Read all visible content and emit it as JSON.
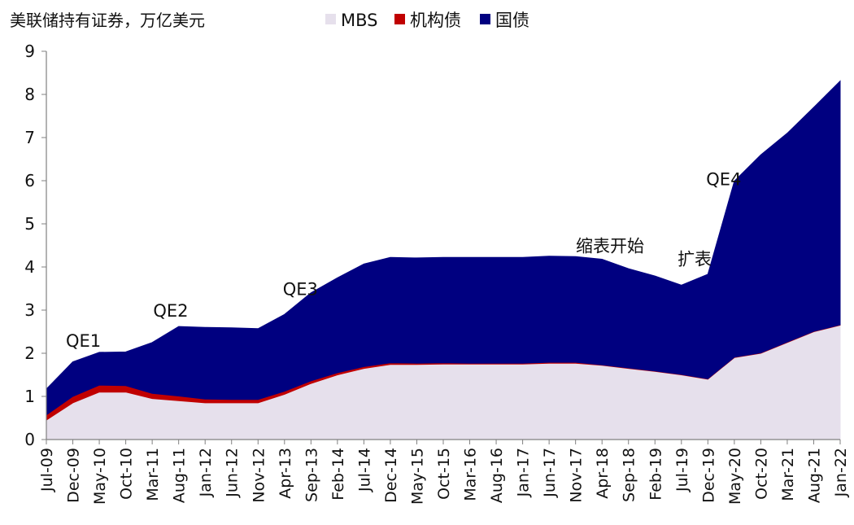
{
  "chart_data": {
    "type": "area",
    "stacked": true,
    "title": "美联储持有证券，万亿美元",
    "ylim": [
      0,
      9
    ],
    "yticks": [
      0,
      1,
      2,
      3,
      4,
      5,
      6,
      7,
      8,
      9
    ],
    "x_tick_labels": [
      "Jul-09",
      "Dec-09",
      "May-10",
      "Oct-10",
      "Mar-11",
      "Aug-11",
      "Jan-12",
      "Jun-12",
      "Nov-12",
      "Apr-13",
      "Sep-13",
      "Feb-14",
      "Jul-14",
      "Dec-14",
      "May-15",
      "Oct-15",
      "Mar-16",
      "Aug-16",
      "Jan-17",
      "Jun-17",
      "Nov-17",
      "Apr-18",
      "Sep-18",
      "Feb-19",
      "Jul-19",
      "Dec-19",
      "May-20",
      "Oct-20",
      "Mar-21",
      "Aug-21",
      "Jan-22"
    ],
    "legend": {
      "placement": "top"
    },
    "colors": {
      "MBS": "#e6e0ec",
      "机构债": "#c00000",
      "国债": "#000080"
    },
    "series": [
      {
        "name": "MBS",
        "values": [
          0.45,
          0.85,
          1.1,
          1.1,
          0.95,
          0.9,
          0.85,
          0.85,
          0.85,
          1.05,
          1.3,
          1.5,
          1.65,
          1.74,
          1.74,
          1.75,
          1.75,
          1.75,
          1.75,
          1.77,
          1.77,
          1.72,
          1.65,
          1.58,
          1.5,
          1.4,
          1.9,
          2.0,
          2.25,
          2.5,
          2.65
        ]
      },
      {
        "name": "机构债",
        "values": [
          0.12,
          0.15,
          0.16,
          0.15,
          0.12,
          0.11,
          0.09,
          0.08,
          0.08,
          0.07,
          0.06,
          0.05,
          0.04,
          0.04,
          0.03,
          0.03,
          0.02,
          0.02,
          0.02,
          0.02,
          0.02,
          0.01,
          0.01,
          0.01,
          0.01,
          0.01,
          0.01,
          0.01,
          0.01,
          0.01,
          0.01
        ]
      },
      {
        "name": "国债",
        "values": [
          0.6,
          0.8,
          0.76,
          0.78,
          1.18,
          1.61,
          1.66,
          1.66,
          1.64,
          1.78,
          2.04,
          2.2,
          2.38,
          2.44,
          2.44,
          2.44,
          2.45,
          2.45,
          2.45,
          2.46,
          2.45,
          2.45,
          2.3,
          2.2,
          2.07,
          2.42,
          4.08,
          4.59,
          4.84,
          5.19,
          5.65
        ]
      }
    ],
    "annotations": [
      {
        "text": "QE1",
        "x_index": 1.4,
        "y": 2.15
      },
      {
        "text": "QE2",
        "x_index": 4.7,
        "y": 2.85
      },
      {
        "text": "QE3",
        "x_index": 9.6,
        "y": 3.35
      },
      {
        "text": "缩表开始",
        "x_index": 21.3,
        "y": 4.35
      },
      {
        "text": "扩表",
        "x_index": 24.5,
        "y": 4.05
      },
      {
        "text": "QE4",
        "x_index": 25.6,
        "y": 5.9
      }
    ]
  }
}
